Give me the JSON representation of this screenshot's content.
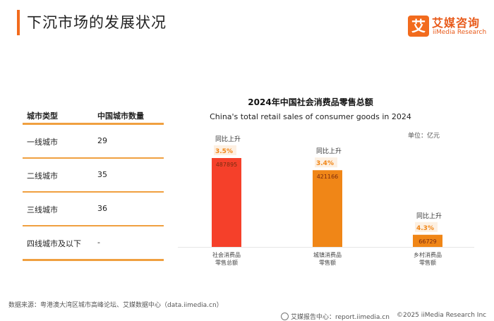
{
  "header": {
    "title": "下沉市场的发展状况"
  },
  "logo": {
    "mark": "艾",
    "cn": "艾媒咨询",
    "en": "iiMedia Research"
  },
  "table": {
    "headers": [
      "城市类型",
      "中国城市数量"
    ],
    "rows": [
      [
        "一线城市",
        "29"
      ],
      [
        "二线城市",
        "35"
      ],
      [
        "三线城市",
        "36"
      ],
      [
        "四线城市及以下",
        "-"
      ]
    ]
  },
  "chart_data": {
    "type": "bar",
    "title": "2024年中国社会消费品零售总额",
    "subtitle": "China's total retail sales of consumer goods in 2024",
    "unit": "单位：亿元",
    "growth_label": "同比上升",
    "categories": [
      "社会消费品\n零售总额",
      "城镇消费品\n零售额",
      "乡村消费品\n零售额"
    ],
    "values": [
      487895,
      421166,
      66729
    ],
    "growth": [
      "3.5%",
      "3.4%",
      "4.3%"
    ],
    "colors": [
      "#f5402a",
      "#f08617",
      "#f08617"
    ],
    "ylim": [
      0,
      650000
    ]
  },
  "footer": {
    "source": "数据来源：粤港澳大湾区城市高峰论坛、艾媒数据中心（data.iimedia.cn）",
    "left": "艾媒报告中心：report.iimedia.cn",
    "right": "©2025  iiMedia Research  Inc"
  }
}
